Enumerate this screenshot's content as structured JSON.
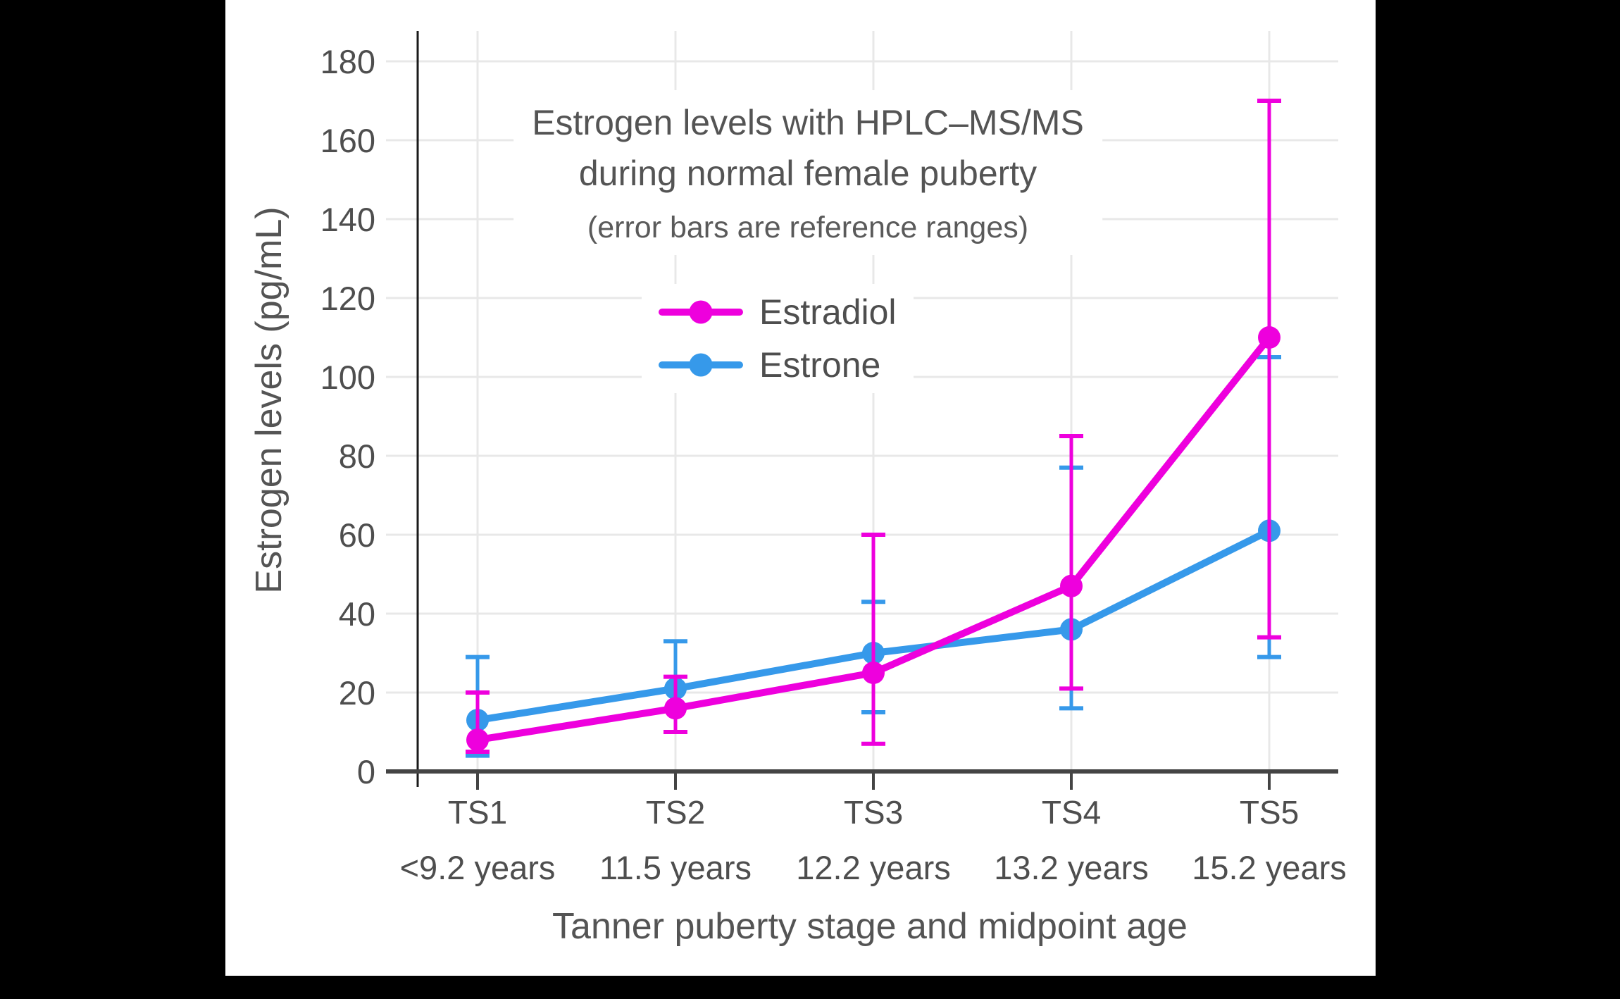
{
  "frame": {
    "background": "#000000",
    "panel_background": "#ffffff"
  },
  "title": {
    "line1": "Estrogen levels with HPLC–MS/MS",
    "line2": "during normal female puberty",
    "subtitle": "(error bars are reference ranges)"
  },
  "legend": {
    "items": [
      {
        "label": "Estradiol",
        "color": "#EE00DD"
      },
      {
        "label": "Estrone",
        "color": "#3699EA"
      }
    ]
  },
  "axes": {
    "y": {
      "title": "Estrogen levels (pg/mL)",
      "ticks": [
        0,
        20,
        40,
        60,
        80,
        100,
        120,
        140,
        160,
        180
      ]
    },
    "x": {
      "title": "Tanner puberty stage and midpoint age"
    }
  },
  "colors": {
    "text": "#4e4e4e",
    "grid": "#e8e8e8",
    "x_axis_line": "#444444",
    "y_axis_line": "#1a1a1a",
    "estradiol": "#EE00DD",
    "estrone": "#3699EA"
  },
  "chart_data": {
    "type": "line",
    "title": "Estrogen levels with HPLC–MS/MS during normal female puberty",
    "subtitle": "(error bars are reference ranges)",
    "xlabel": "Tanner puberty stage and midpoint age",
    "ylabel": "Estrogen levels (pg/mL)",
    "categories": [
      "TS1",
      "TS2",
      "TS3",
      "TS4",
      "TS5"
    ],
    "age_labels": [
      "<9.2 years",
      "11.5 years",
      "12.2 years",
      "13.2 years",
      "15.2 years"
    ],
    "ylim": [
      0,
      188
    ],
    "ytick_step": 20,
    "grid": true,
    "legend_position": "inside-upper-left",
    "error_bars_meaning": "reference ranges",
    "series": [
      {
        "name": "Estradiol",
        "color": "#EE00DD",
        "values": [
          8,
          16,
          25,
          47,
          110
        ],
        "error_low": [
          5,
          10,
          7,
          21,
          34
        ],
        "error_high": [
          20,
          24,
          60,
          85,
          170
        ]
      },
      {
        "name": "Estrone",
        "color": "#3699EA",
        "values": [
          13,
          21,
          30,
          36,
          61
        ],
        "error_low": [
          4,
          10,
          15,
          16,
          29
        ],
        "error_high": [
          29,
          33,
          43,
          77,
          105
        ]
      }
    ]
  }
}
